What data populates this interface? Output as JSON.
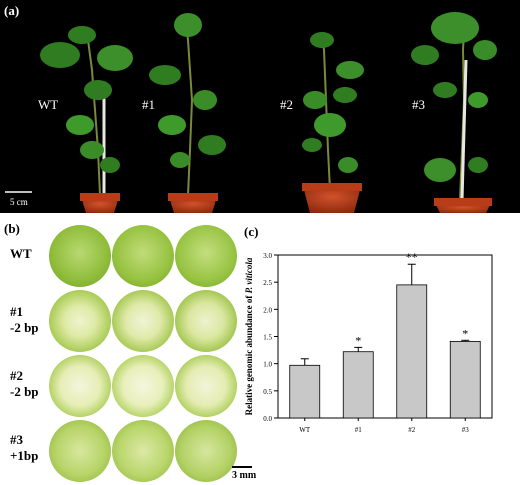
{
  "panel_a": {
    "label": "(a)",
    "plant_labels": [
      "WT",
      "#1",
      "#2",
      "#3"
    ],
    "scale_bar": "5 cm"
  },
  "panel_b": {
    "label": "(b)",
    "rows": [
      {
        "line1": "WT",
        "line2": ""
      },
      {
        "line1": "#1",
        "line2": "-2 bp"
      },
      {
        "line1": "#2",
        "line2": "-2 bp"
      },
      {
        "line1": "#3",
        "line2": "+1bp"
      }
    ],
    "scale_bar": "3 mm"
  },
  "panel_c": {
    "label": "(c)"
  },
  "chart_data": {
    "type": "bar",
    "categories": [
      "WT",
      "#1",
      "#2",
      "#3"
    ],
    "values": [
      0.97,
      1.22,
      2.45,
      1.41
    ],
    "errors": [
      0.12,
      0.08,
      0.38,
      0.02
    ],
    "significance": [
      "",
      "*",
      "**",
      "*"
    ],
    "ylabel_prefix": "Relative genomic abundance of ",
    "ylabel_italic": "P. viticola",
    "ylim": [
      0,
      3.0
    ],
    "yticks": [
      "0.0",
      "0.5",
      "1.0",
      "1.5",
      "2.0",
      "2.5",
      "3.0"
    ],
    "bar_color": "#c8c8c8"
  }
}
